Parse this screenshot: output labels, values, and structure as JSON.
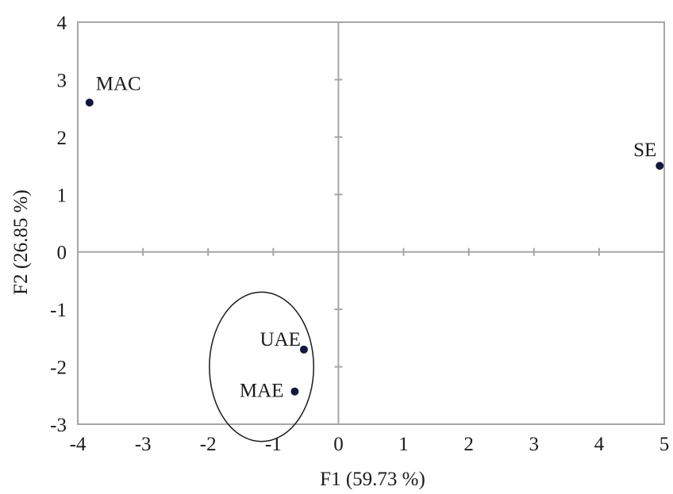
{
  "chart_data": {
    "type": "scatter",
    "xlabel": "F1 (59.73 %)",
    "ylabel": "F2 (26.85 %)",
    "xlim": [
      -4,
      5
    ],
    "ylim": [
      -3,
      4
    ],
    "x_ticks": [
      -4,
      -3,
      -2,
      -1,
      0,
      1,
      2,
      3,
      4,
      5
    ],
    "y_ticks": [
      -3,
      -2,
      -1,
      0,
      1,
      2,
      3,
      4
    ],
    "grid": false,
    "points": [
      {
        "label": "MAC",
        "x": -3.82,
        "y": 2.6
      },
      {
        "label": "SE",
        "x": 4.93,
        "y": 1.5
      },
      {
        "label": "UAE",
        "x": -0.53,
        "y": -1.7
      },
      {
        "label": "MAE",
        "x": -0.67,
        "y": -2.43
      }
    ],
    "annotations": [
      {
        "type": "ellipse",
        "encloses": [
          "UAE",
          "MAE"
        ],
        "cx": -1.18,
        "cy": -2.0,
        "rx": 0.8,
        "ry": 1.3
      }
    ],
    "colors": {
      "frame": "#a6a6a6",
      "marker": "#14163d",
      "text": "#1a1a1a",
      "ellipse": "#1a1a1a"
    }
  }
}
